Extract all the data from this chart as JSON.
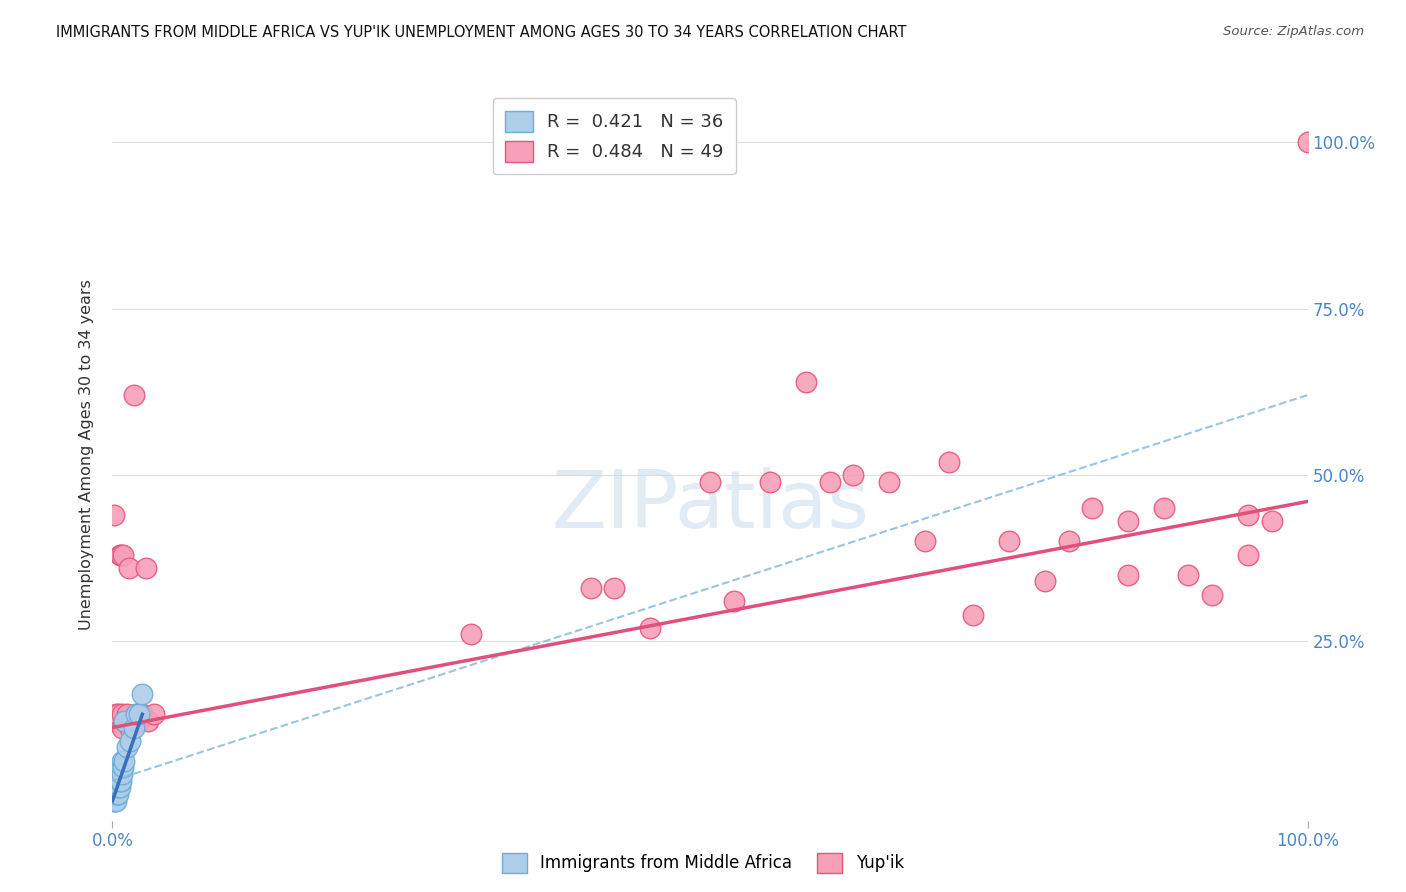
{
  "title": "IMMIGRANTS FROM MIDDLE AFRICA VS YUP'IK UNEMPLOYMENT AMONG AGES 30 TO 34 YEARS CORRELATION CHART",
  "source": "Source: ZipAtlas.com",
  "ylabel": "Unemployment Among Ages 30 to 34 years",
  "xlim": [
    0,
    1.0
  ],
  "ylim": [
    -0.02,
    1.08
  ],
  "blue_color": "#6baed6",
  "blue_fill": "#aecde8",
  "pink_color": "#e8567a",
  "pink_fill": "#f5a0b8",
  "blue_line_color": "#3a6fba",
  "pink_line_color": "#e0507a",
  "dashed_line_color": "#88bbdd",
  "background_color": "#ffffff",
  "grid_color": "#dddddd",
  "blue_scatter_x": [
    0.001,
    0.001,
    0.001,
    0.002,
    0.002,
    0.002,
    0.002,
    0.003,
    0.003,
    0.003,
    0.003,
    0.003,
    0.004,
    0.004,
    0.004,
    0.004,
    0.005,
    0.005,
    0.005,
    0.005,
    0.006,
    0.006,
    0.006,
    0.007,
    0.007,
    0.008,
    0.008,
    0.009,
    0.01,
    0.01,
    0.012,
    0.015,
    0.018,
    0.02,
    0.022,
    0.025
  ],
  "blue_scatter_y": [
    0.01,
    0.02,
    0.03,
    0.01,
    0.02,
    0.03,
    0.04,
    0.01,
    0.02,
    0.03,
    0.04,
    0.05,
    0.02,
    0.03,
    0.04,
    0.05,
    0.02,
    0.03,
    0.04,
    0.05,
    0.03,
    0.04,
    0.05,
    0.04,
    0.06,
    0.05,
    0.07,
    0.06,
    0.07,
    0.13,
    0.09,
    0.1,
    0.12,
    0.14,
    0.14,
    0.17
  ],
  "pink_scatter_x": [
    0.001,
    0.002,
    0.003,
    0.004,
    0.005,
    0.006,
    0.007,
    0.008,
    0.008,
    0.009,
    0.01,
    0.012,
    0.014,
    0.015,
    0.016,
    0.018,
    0.02,
    0.022,
    0.025,
    0.028,
    0.03,
    0.035,
    0.3,
    0.4,
    0.42,
    0.45,
    0.5,
    0.52,
    0.55,
    0.58,
    0.6,
    0.62,
    0.65,
    0.68,
    0.7,
    0.72,
    0.75,
    0.78,
    0.8,
    0.82,
    0.85,
    0.85,
    0.88,
    0.9,
    0.92,
    0.95,
    0.95,
    0.97,
    1.0
  ],
  "pink_scatter_y": [
    0.44,
    0.13,
    0.14,
    0.13,
    0.14,
    0.38,
    0.38,
    0.12,
    0.14,
    0.38,
    0.13,
    0.14,
    0.36,
    0.12,
    0.13,
    0.62,
    0.14,
    0.13,
    0.14,
    0.36,
    0.13,
    0.14,
    0.26,
    0.33,
    0.33,
    0.27,
    0.49,
    0.31,
    0.49,
    0.64,
    0.49,
    0.5,
    0.49,
    0.4,
    0.52,
    0.29,
    0.4,
    0.34,
    0.4,
    0.45,
    0.35,
    0.43,
    0.45,
    0.35,
    0.32,
    0.44,
    0.38,
    0.43,
    1.0
  ],
  "pink_line_x_start": 0.0,
  "pink_line_x_end": 1.0,
  "pink_line_y_start": 0.12,
  "pink_line_y_end": 0.46,
  "blue_line_x_start": 0.0,
  "blue_line_x_end": 0.025,
  "blue_line_y_start": 0.01,
  "blue_line_y_end": 0.14,
  "dashed_line_x_start": 0.0,
  "dashed_line_x_end": 1.0,
  "dashed_line_y_start": 0.04,
  "dashed_line_y_end": 0.62
}
